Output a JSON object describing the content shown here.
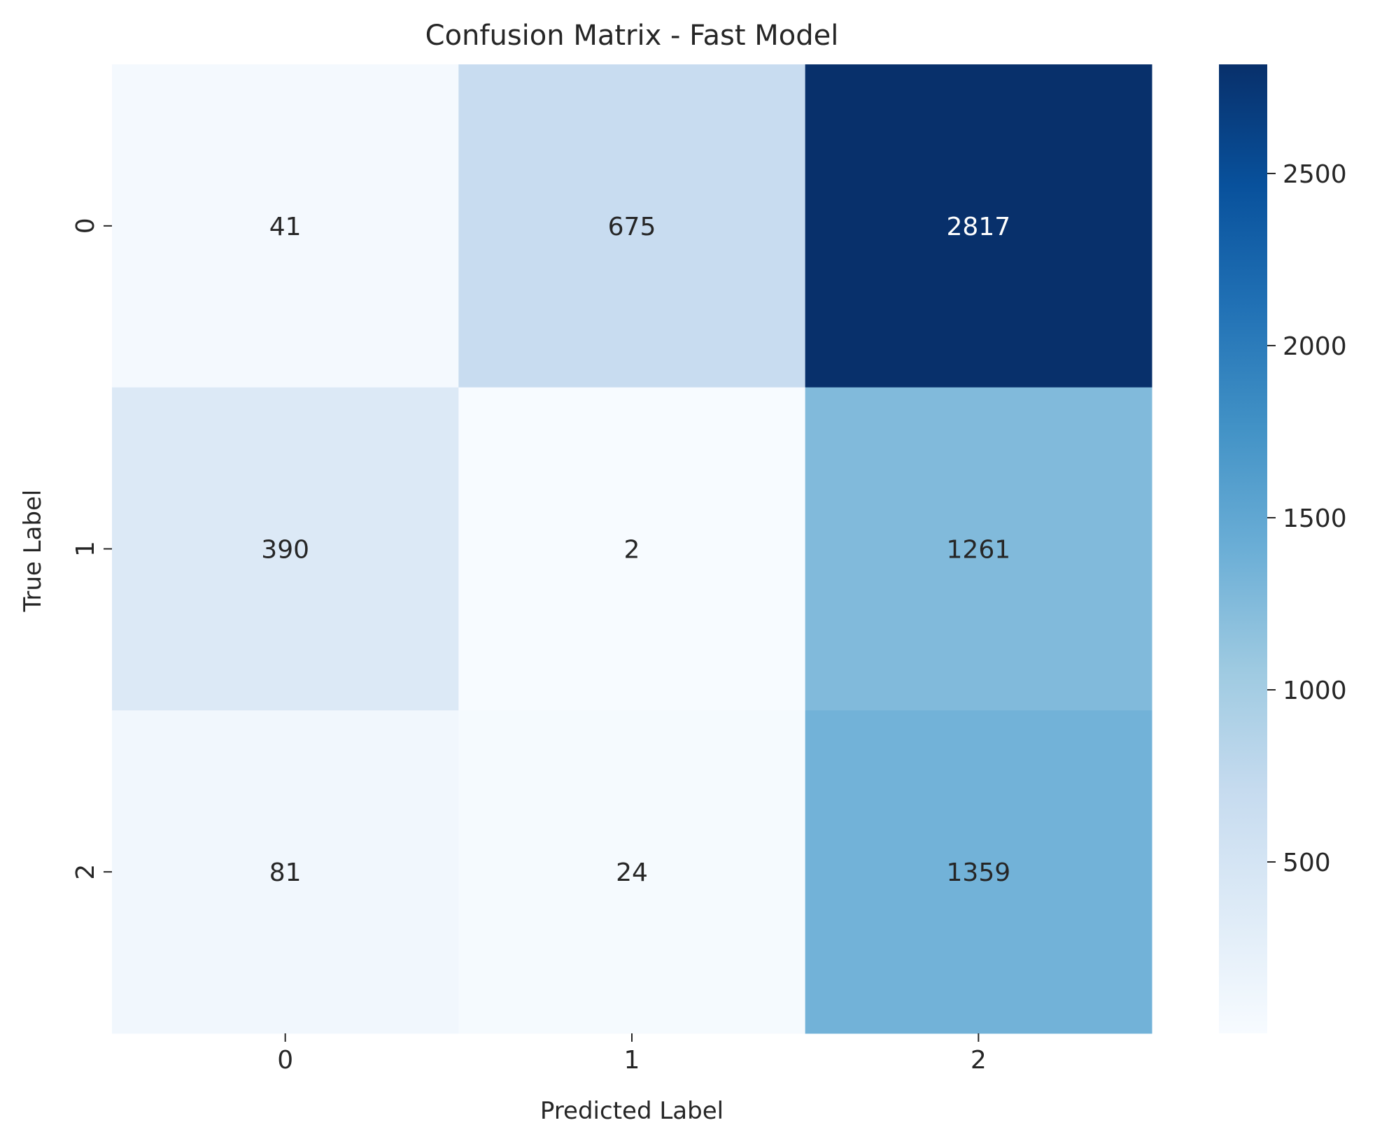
{
  "chart_data": {
    "type": "heatmap",
    "title": "Confusion Matrix - Fast Model",
    "xlabel": "Predicted Label",
    "ylabel": "True Label",
    "x_categories": [
      "0",
      "1",
      "2"
    ],
    "y_categories": [
      "0",
      "1",
      "2"
    ],
    "values": [
      [
        41,
        675,
        2817
      ],
      [
        390,
        2,
        1261
      ],
      [
        81,
        24,
        1359
      ]
    ],
    "colormap": "Blues",
    "colorbar": {
      "min": 2,
      "max": 2817,
      "ticks": [
        500,
        1000,
        1500,
        2000,
        2500
      ]
    },
    "grid": false,
    "legend": "colorbar-right"
  }
}
